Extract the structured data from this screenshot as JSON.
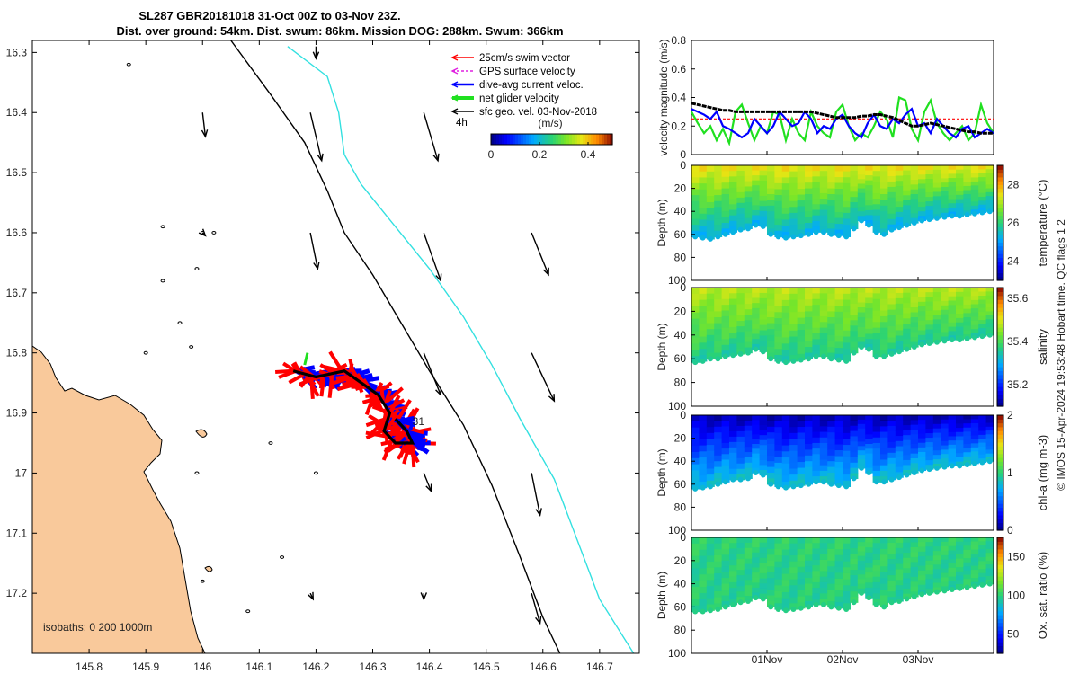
{
  "title": {
    "line1": "SL287 GBR20181018 31-Oct 00Z to 03-Nov 23Z.",
    "line2": "Dist. over ground: 54km. Dist. swum: 86km. Mission DOG: 288km. Swum: 366km"
  },
  "side_note": "© IMOS 15-Apr-2024 19:53:48 Hobart time. QC flags 1  2",
  "colors": {
    "land": "#f9c99b",
    "swim_vector": "#ff0000",
    "gps_velocity": "#e020e0",
    "current": "#0000ff",
    "glider_net": "#20e020",
    "geo_vel": "#000000",
    "isobath_200": "#000000",
    "isobath_1000": "#33e0e0",
    "threshold": "#ff0000"
  },
  "chart_data": [
    {
      "id": "map",
      "type": "scatter",
      "title": "glider track map",
      "xlim": [
        145.7,
        146.77
      ],
      "ylim": [
        -17.3,
        -16.28
      ],
      "x_ticks": [
        145.8,
        145.9,
        146,
        146.1,
        146.2,
        146.3,
        146.4,
        146.5,
        146.6,
        146.7
      ],
      "x_tick_labels": [
        "145.8",
        "145.9",
        "146",
        "146.1",
        "146.2",
        "146.3",
        "146.4",
        "146.5",
        "146.6",
        "146.7"
      ],
      "y_ticks": [
        -16.3,
        -16.4,
        -16.5,
        -16.6,
        -16.7,
        -16.8,
        -16.9,
        -17.0,
        -17.1,
        -17.2
      ],
      "y_tick_labels": [
        "16.3",
        "16.4",
        "16.5",
        "16.6",
        "16.7",
        "16.8",
        "16.9",
        "-17",
        "17.1",
        "17.2"
      ],
      "isobaths_label": "isobaths: 0   200  1000m",
      "time_label": "4h",
      "track_label": "31",
      "legend": [
        {
          "label": "25cm/s swim vector",
          "color_key": "swim_vector"
        },
        {
          "label": "GPS surface velocity",
          "color_key": "gps_velocity"
        },
        {
          "label": "dive-avg current veloc.",
          "color_key": "current"
        },
        {
          "label": "net glider velocity",
          "color_key": "glider_net"
        },
        {
          "label": "sfc geo. vel. 03-Nov-2018",
          "color_key": "geo_vel"
        }
      ],
      "colorbar": {
        "label": "(m/s)",
        "range": [
          0,
          0.5
        ],
        "ticks": [
          0,
          0.2,
          0.4
        ],
        "tick_labels": [
          "0",
          "0.2",
          "0.4"
        ]
      },
      "isobath_200m": [
        [
          146.05,
          -16.28
        ],
        [
          146.12,
          -16.37
        ],
        [
          146.18,
          -16.45
        ],
        [
          146.22,
          -16.53
        ],
        [
          146.25,
          -16.6
        ],
        [
          146.3,
          -16.67
        ],
        [
          146.35,
          -16.75
        ],
        [
          146.4,
          -16.83
        ],
        [
          146.46,
          -16.92
        ],
        [
          146.51,
          -17.02
        ],
        [
          146.56,
          -17.14
        ],
        [
          146.6,
          -17.24
        ],
        [
          146.63,
          -17.3
        ]
      ],
      "isobath_1000m": [
        [
          146.15,
          -16.29
        ],
        [
          146.22,
          -16.34
        ],
        [
          146.24,
          -16.4
        ],
        [
          146.25,
          -16.47
        ],
        [
          146.28,
          -16.52
        ],
        [
          146.34,
          -16.59
        ],
        [
          146.4,
          -16.66
        ],
        [
          146.46,
          -16.74
        ],
        [
          146.51,
          -16.82
        ],
        [
          146.56,
          -16.91
        ],
        [
          146.62,
          -17.01
        ],
        [
          146.66,
          -17.11
        ],
        [
          146.7,
          -17.21
        ],
        [
          146.76,
          -17.3
        ]
      ],
      "track": [
        [
          146.16,
          -16.83
        ],
        [
          146.2,
          -16.84
        ],
        [
          146.25,
          -16.83
        ],
        [
          146.28,
          -16.85
        ],
        [
          146.31,
          -16.87
        ],
        [
          146.33,
          -16.9
        ],
        [
          146.32,
          -16.93
        ],
        [
          146.34,
          -16.95
        ],
        [
          146.37,
          -16.95
        ],
        [
          146.36,
          -16.93
        ],
        [
          146.34,
          -16.91
        ]
      ],
      "geo_vectors": [
        {
          "lon": 146.2,
          "lat": -16.29,
          "u": 0.0,
          "v": -0.02
        },
        {
          "lon": 146.0,
          "lat": -16.4,
          "u": 0.005,
          "v": -0.04
        },
        {
          "lon": 146.19,
          "lat": -16.4,
          "u": 0.02,
          "v": -0.08
        },
        {
          "lon": 146.39,
          "lat": -16.4,
          "u": 0.025,
          "v": -0.08
        },
        {
          "lon": 146.19,
          "lat": -16.6,
          "u": 0.013,
          "v": -0.06
        },
        {
          "lon": 146.39,
          "lat": -16.6,
          "u": 0.03,
          "v": -0.08
        },
        {
          "lon": 146.58,
          "lat": -16.6,
          "u": 0.03,
          "v": -0.07
        },
        {
          "lon": 146.39,
          "lat": -16.8,
          "u": 0.03,
          "v": -0.07
        },
        {
          "lon": 146.58,
          "lat": -16.8,
          "u": 0.04,
          "v": -0.08
        },
        {
          "lon": 146.39,
          "lat": -17.0,
          "u": 0.013,
          "v": -0.03
        },
        {
          "lon": 146.58,
          "lat": -17.0,
          "u": 0.015,
          "v": -0.07
        },
        {
          "lon": 146.58,
          "lat": -17.2,
          "u": 0.015,
          "v": -0.05
        },
        {
          "lon": 146.19,
          "lat": -17.2,
          "u": 0.005,
          "v": -0.01
        },
        {
          "lon": 146.39,
          "lat": -17.2,
          "u": 0.0,
          "v": -0.01
        },
        {
          "lon": 146.0,
          "lat": -16.6,
          "u": 0.005,
          "v": -0.005
        }
      ]
    },
    {
      "id": "velocity",
      "type": "line",
      "ylabel": "velocity magnitude (m/s)",
      "xlabel": "",
      "ylim": [
        0,
        0.8
      ],
      "y_ticks": [
        0,
        0.2,
        0.4,
        0.6,
        0.8
      ],
      "y_tick_labels": [
        "0",
        "0.2",
        "0.4",
        "0.6",
        "0.8"
      ],
      "xlim": [
        0,
        4
      ],
      "x_ticks": [
        1,
        2,
        3
      ],
      "x_tick_labels": [
        "01Nov",
        "02Nov",
        "03Nov"
      ],
      "threshold": 0.25,
      "series": [
        {
          "name": "net glider velocity",
          "color_key": "glider_net",
          "values": [
            0.3,
            0.22,
            0.15,
            0.2,
            0.1,
            0.18,
            0.08,
            0.3,
            0.35,
            0.22,
            0.1,
            0.2,
            0.15,
            0.3,
            0.28,
            0.1,
            0.25,
            0.15,
            0.1,
            0.3,
            0.2,
            0.15,
            0.12,
            0.3,
            0.35,
            0.2,
            0.1,
            0.15,
            0.12,
            0.2,
            0.3,
            0.25,
            0.12,
            0.4,
            0.38,
            0.18,
            0.1,
            0.3,
            0.38,
            0.22,
            0.15,
            0.1,
            0.15,
            0.2,
            0.1,
            0.15,
            0.35,
            0.22,
            0.15
          ]
        },
        {
          "name": "dive-avg current",
          "color_key": "current",
          "values": [
            0.32,
            0.3,
            0.28,
            0.25,
            0.3,
            0.2,
            0.18,
            0.15,
            0.12,
            0.15,
            0.25,
            0.2,
            0.15,
            0.2,
            0.3,
            0.25,
            0.2,
            0.22,
            0.3,
            0.25,
            0.15,
            0.2,
            0.18,
            0.25,
            0.28,
            0.2,
            0.15,
            0.12,
            0.22,
            0.28,
            0.2,
            0.18,
            0.25,
            0.22,
            0.28,
            0.32,
            0.2,
            0.22,
            0.15,
            0.25,
            0.2,
            0.15,
            0.12,
            0.18,
            0.2,
            0.12,
            0.15,
            0.18,
            0.15
          ]
        },
        {
          "name": "GPS surface velocity",
          "color_key": "geo_vel",
          "values": [
            0.36,
            0.35,
            0.34,
            0.33,
            0.32,
            0.31,
            0.31,
            0.3,
            0.3,
            0.3,
            0.3,
            0.3,
            0.3,
            0.3,
            0.3,
            0.3,
            0.3,
            0.3,
            0.3,
            0.3,
            0.29,
            0.28,
            0.27,
            0.26,
            0.26,
            0.26,
            0.26,
            0.27,
            0.27,
            0.28,
            0.28,
            0.27,
            0.26,
            0.24,
            0.22,
            0.2,
            0.2,
            0.21,
            0.22,
            0.21,
            0.2,
            0.19,
            0.18,
            0.17,
            0.16,
            0.16,
            0.15,
            0.15,
            0.15
          ]
        }
      ]
    },
    {
      "id": "temperature",
      "type": "heatmap",
      "ylabel": "Depth (m)",
      "ylim": [
        0,
        100
      ],
      "y_tick_labels": [
        "0",
        "20",
        "40",
        "60",
        "80",
        "100"
      ],
      "colorbar": {
        "label": "temperature (°C)",
        "range": [
          23,
          29
        ],
        "ticks": [
          24,
          26,
          28
        ],
        "tick_labels": [
          "24",
          "26",
          "28"
        ]
      },
      "surface_value": 27.5,
      "bottom_value": 25.3,
      "max_depth": [
        62,
        63,
        64,
        62,
        60,
        58,
        56,
        55,
        52,
        53,
        60,
        62,
        63,
        62,
        61,
        60,
        58,
        58,
        60,
        61,
        62,
        55,
        48,
        52,
        58,
        60,
        56,
        54,
        52,
        50,
        48,
        47,
        46,
        45,
        44,
        44,
        43,
        42,
        41,
        40
      ]
    },
    {
      "id": "salinity",
      "type": "heatmap",
      "ylabel": "Depth (m)",
      "ylim": [
        0,
        100
      ],
      "y_tick_labels": [
        "0",
        "20",
        "40",
        "60",
        "80",
        "100"
      ],
      "colorbar": {
        "label": "salinity",
        "range": [
          35.1,
          35.65
        ],
        "ticks": [
          35.2,
          35.4,
          35.6
        ],
        "tick_labels": [
          "35.2",
          "35.4",
          "35.6"
        ]
      },
      "surface_value": 35.48,
      "bottom_value": 35.36,
      "max_depth": [
        63,
        62,
        60,
        60,
        58,
        57,
        56,
        55,
        52,
        54,
        60,
        62,
        63,
        62,
        61,
        60,
        58,
        58,
        60,
        61,
        62,
        55,
        50,
        52,
        58,
        58,
        56,
        54,
        52,
        50,
        48,
        47,
        46,
        45,
        44,
        44,
        43,
        42,
        41,
        40
      ]
    },
    {
      "id": "chlorophyll",
      "type": "heatmap",
      "ylabel": "Depth (m)",
      "ylim": [
        0,
        100
      ],
      "y_tick_labels": [
        "0",
        "20",
        "40",
        "60",
        "80",
        "100"
      ],
      "colorbar": {
        "label": "chl-a (mg m-3)",
        "range": [
          0,
          2
        ],
        "ticks": [
          0,
          1,
          2
        ],
        "tick_labels": [
          "0",
          "1",
          "2"
        ]
      },
      "surface_value": 0.1,
      "bottom_value": 0.8,
      "max_depth": [
        64,
        63,
        62,
        60,
        58,
        56,
        56,
        55,
        50,
        52,
        60,
        62,
        63,
        62,
        61,
        60,
        58,
        58,
        60,
        61,
        62,
        55,
        46,
        50,
        58,
        58,
        56,
        54,
        52,
        50,
        48,
        47,
        46,
        45,
        44,
        44,
        43,
        42,
        41,
        40
      ]
    },
    {
      "id": "oxygen",
      "type": "heatmap",
      "ylabel": "Depth (m)",
      "ylim": [
        0,
        100
      ],
      "y_tick_labels": [
        "0",
        "20",
        "40",
        "60",
        "80",
        "100"
      ],
      "colorbar": {
        "label": "Ox. sat. ratio (%)",
        "range": [
          25,
          175
        ],
        "ticks": [
          50,
          100,
          150
        ],
        "tick_labels": [
          "50",
          "100",
          "150"
        ]
      },
      "surface_value": 100,
      "bottom_value": 98,
      "max_depth": [
        64,
        64,
        63,
        62,
        60,
        58,
        56,
        55,
        52,
        53,
        60,
        62,
        63,
        62,
        61,
        60,
        58,
        58,
        60,
        61,
        62,
        56,
        48,
        52,
        58,
        60,
        56,
        55,
        53,
        51,
        49,
        48,
        47,
        46,
        45,
        44,
        43,
        42,
        41,
        40
      ]
    }
  ]
}
